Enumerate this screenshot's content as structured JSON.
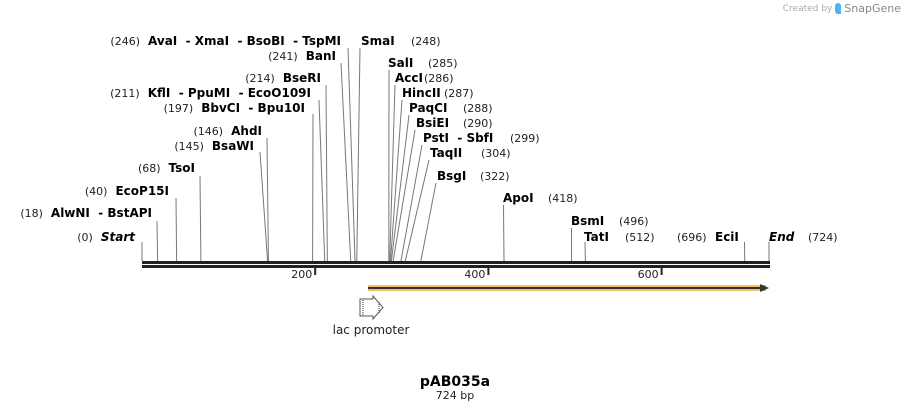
{
  "credit": {
    "prefix": "Created by",
    "brand": "SnapGene"
  },
  "map": {
    "title": "pAB035a",
    "length_label": "724 bp",
    "length_bp": 724,
    "ticks": [
      "200",
      "400",
      "600"
    ],
    "tick_values": [
      200,
      400,
      600
    ],
    "colors": {
      "backbone": "#222222",
      "feature": "#f5c063",
      "feature_line": "#333333"
    },
    "features": [
      {
        "label": "lac promoter",
        "type": "promoter",
        "direction": "forward"
      },
      {
        "label": "",
        "type": "orf",
        "direction": "forward",
        "start": 265,
        "end": 724
      }
    ],
    "sites": [
      {
        "name": "Start",
        "pos_label": "(0)",
        "pos": 0
      },
      {
        "name": "AlwNI  - BstAPI",
        "pos_label": "(18)",
        "pos": 18
      },
      {
        "name": "EcoP15I",
        "pos_label": "(40)",
        "pos": 40
      },
      {
        "name": "TsoI",
        "pos_label": "(68)",
        "pos": 68
      },
      {
        "name": "BsaWI",
        "pos_label": "(145)",
        "pos": 145
      },
      {
        "name": "AhdI",
        "pos_label": "(146)",
        "pos": 146
      },
      {
        "name": "BbvCI  - Bpu10I",
        "pos_label": "(197)",
        "pos": 197
      },
      {
        "name": "KflI  - PpuMI  - EcoO109I",
        "pos_label": "(211)",
        "pos": 211
      },
      {
        "name": "BseRI",
        "pos_label": "(214)",
        "pos": 214
      },
      {
        "name": "BanI",
        "pos_label": "(241)",
        "pos": 241
      },
      {
        "name": "AvaI  - XmaI  - BsoBI  - TspMI",
        "pos_label": "(246)",
        "pos": 246
      },
      {
        "name": "SmaI",
        "pos_label": "(248)",
        "pos": 248
      },
      {
        "name": "SalI",
        "pos_label": "(285)",
        "pos": 285
      },
      {
        "name": "AccI",
        "pos_label": "(286)",
        "pos": 286
      },
      {
        "name": "HincII",
        "pos_label": "(287)",
        "pos": 287
      },
      {
        "name": "PaqCI",
        "pos_label": "(288)",
        "pos": 288
      },
      {
        "name": "BsiEI",
        "pos_label": "(290)",
        "pos": 290
      },
      {
        "name": "PstI  - SbfI",
        "pos_label": "(299)",
        "pos": 299
      },
      {
        "name": "TaqII",
        "pos_label": "(304)",
        "pos": 304
      },
      {
        "name": "BsgI",
        "pos_label": "(322)",
        "pos": 322
      },
      {
        "name": "ApoI",
        "pos_label": "(418)",
        "pos": 418
      },
      {
        "name": "BsmI",
        "pos_label": "(496)",
        "pos": 496
      },
      {
        "name": "TatI",
        "pos_label": "(512)",
        "pos": 512
      },
      {
        "name": "EciI",
        "pos_label": "(696)",
        "pos": 696
      },
      {
        "name": "End",
        "pos_label": "(724)",
        "pos": 724
      }
    ]
  }
}
